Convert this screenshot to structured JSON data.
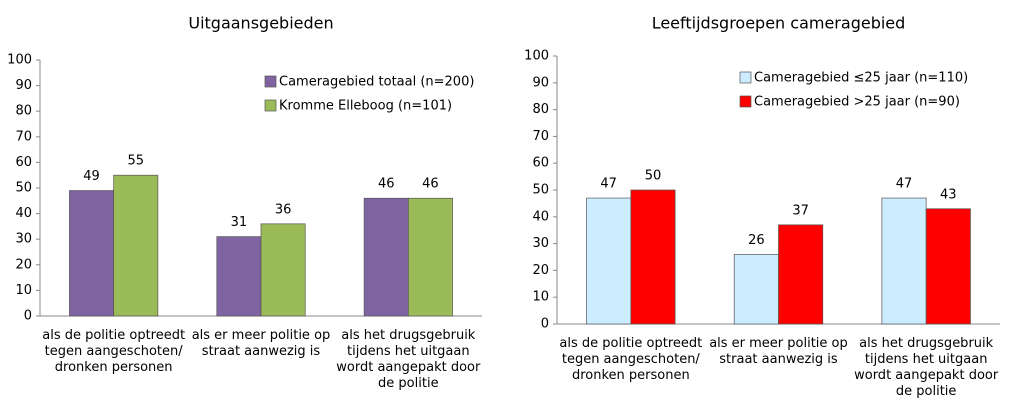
{
  "chart_data": [
    {
      "type": "bar",
      "title": "Uitgaansgebieden",
      "categories": [
        "als de politie optreedt tegen aangeschoten/ dronken personen",
        "als er meer politie op straat aanwezig is",
        "als het drugsgebruik tijdens het uitgaan wordt aangepakt door de politie"
      ],
      "series": [
        {
          "name": "Cameragebied totaal (n=200)",
          "color": "#8064a2",
          "values": [
            49,
            31,
            46
          ]
        },
        {
          "name": "Kromme Elleboog (n=101)",
          "color": "#9bbb59",
          "values": [
            55,
            36,
            46
          ]
        }
      ],
      "ylim": [
        0,
        100
      ],
      "yticks": [
        0,
        10,
        20,
        30,
        40,
        50,
        60,
        70,
        80,
        90,
        100
      ],
      "legend": "top-right"
    },
    {
      "type": "bar",
      "title": "Leeftijdsgroepen cameragebied",
      "categories": [
        "als de politie optreedt tegen aangeschoten/ dronken personen",
        "als er meer politie op straat aanwezig is",
        "als het drugsgebruik tijdens het uitgaan wordt aangepakt door de politie"
      ],
      "series": [
        {
          "name": "Cameragebied ≤25 jaar (n=110)",
          "color": "#ccecff",
          "values": [
            47,
            26,
            47
          ]
        },
        {
          "name": "Cameragebied >25 jaar (n=90)",
          "color": "#ff0000",
          "values": [
            50,
            37,
            43
          ]
        }
      ],
      "ylim": [
        0,
        100
      ],
      "yticks": [
        0,
        10,
        20,
        30,
        40,
        50,
        60,
        70,
        80,
        90,
        100
      ],
      "legend": "top-right"
    }
  ]
}
